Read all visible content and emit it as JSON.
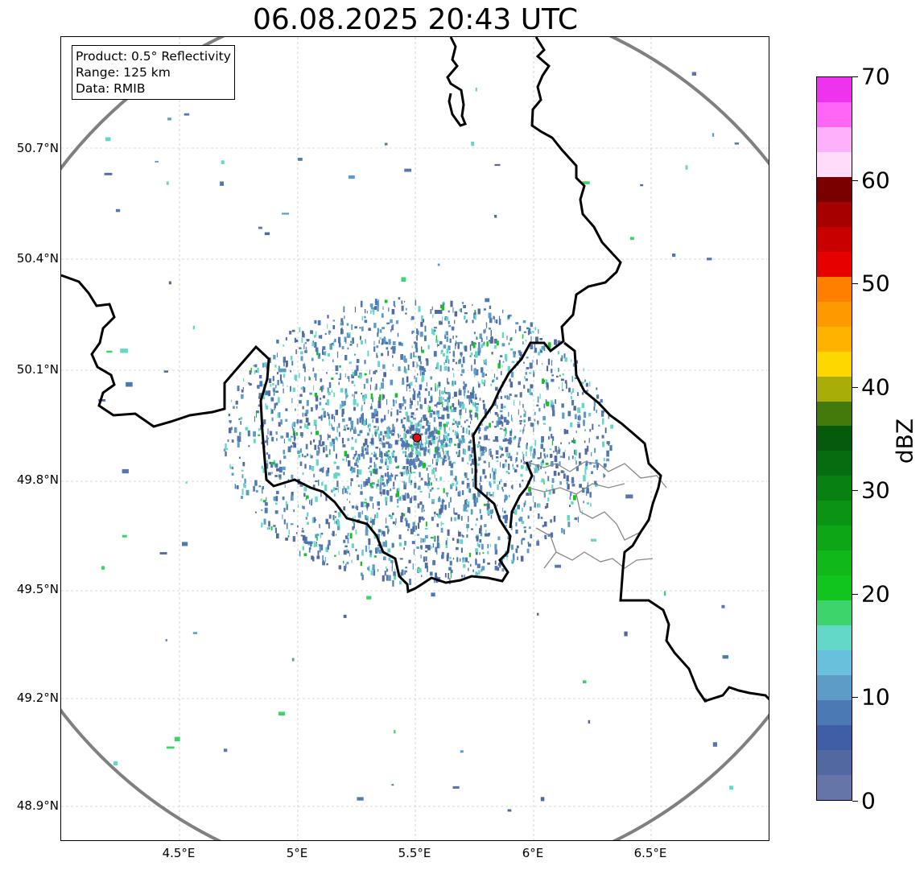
{
  "title": "06.08.2025 20:43 UTC",
  "info_box": {
    "product": "Product: 0.5° Reflectivity",
    "range": "Range: 125 km",
    "data": "Data: RMIB"
  },
  "axes": {
    "lat_labels": [
      "50.7°N",
      "50.4°N",
      "50.1°N",
      "49.8°N",
      "49.5°N",
      "49.2°N",
      "48.9°N"
    ],
    "lon_labels": [
      "4.5°E",
      "5°E",
      "5.5°E",
      "6°E",
      "6.5°E"
    ]
  },
  "radar_site": {
    "color": "#e01010"
  },
  "colorbar": {
    "unit": "dBZ",
    "tick_labels": [
      "0",
      "10",
      "20",
      "30",
      "40",
      "50",
      "60",
      "70"
    ],
    "colors": [
      "#6675a8",
      "#5268a0",
      "#3f5ea6",
      "#4b79b4",
      "#5c9cc6",
      "#68c0dc",
      "#63d8c8",
      "#3ed46c",
      "#12c41e",
      "#10b81a",
      "#0da616",
      "#0b9314",
      "#098012",
      "#076c10",
      "#055a0e",
      "#447a0c",
      "#a8ad08",
      "#ffd700",
      "#ffb300",
      "#ff9900",
      "#ff7f00",
      "#e60000",
      "#c80000",
      "#a60000",
      "#7a0000",
      "#ffdcfa",
      "#ffb0fa",
      "#ff66f6",
      "#ee33ee"
    ]
  },
  "colors": {
    "range_ring": "#808080",
    "border": "#000000",
    "grid": "#b8b8b8",
    "echo_primary": "#5677b0"
  }
}
